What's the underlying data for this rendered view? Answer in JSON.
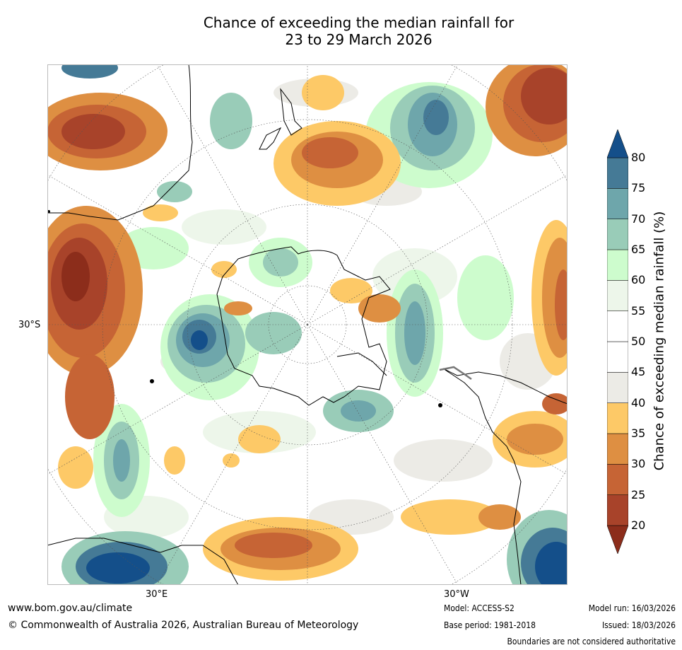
{
  "title": {
    "line1": "Chance of exceeding the median rainfall for",
    "line2": "23 to 29 March 2026"
  },
  "map": {
    "projection": "south-polar-stereographic",
    "lat_labels": [
      "30°S"
    ],
    "lon_labels": [
      "30°E",
      "30°W"
    ]
  },
  "colorbar": {
    "label": "Chance of exceeding median rainfall (%)",
    "ticks": [
      "20",
      "25",
      "30",
      "35",
      "40",
      "45",
      "50",
      "55",
      "60",
      "65",
      "70",
      "75",
      "80"
    ],
    "bins": [
      {
        "range": "<20",
        "color": "#8c2d1b"
      },
      {
        "range": "20-25",
        "color": "#a8432a"
      },
      {
        "range": "25-30",
        "color": "#c66435"
      },
      {
        "range": "30-35",
        "color": "#de8f42"
      },
      {
        "range": "35-40",
        "color": "#fdc967"
      },
      {
        "range": "40-45",
        "color": "#ecebe6"
      },
      {
        "range": "45-50",
        "color": "#ffffff"
      },
      {
        "range": "50-55",
        "color": "#ffffff"
      },
      {
        "range": "55-60",
        "color": "#edf6ea"
      },
      {
        "range": "60-65",
        "color": "#cdfccd"
      },
      {
        "range": "65-70",
        "color": "#99ccb8"
      },
      {
        "range": "70-75",
        "color": "#6ea6ab"
      },
      {
        "range": "75-80",
        "color": "#457a96"
      },
      {
        "range": ">80",
        "color": "#144f8a"
      }
    ]
  },
  "footer": {
    "website": "www.bom.gov.au/climate",
    "copyright": "© Commonwealth of Australia 2026, Australian Bureau of Meteorology",
    "model": "Model: ACCESS-S2",
    "base_period": "Base period: 1981-2018",
    "model_run": "Model run: 16/03/2026",
    "issued": "Issued: 18/03/2026",
    "disclaimer": "Boundaries are not considered authoritative"
  }
}
